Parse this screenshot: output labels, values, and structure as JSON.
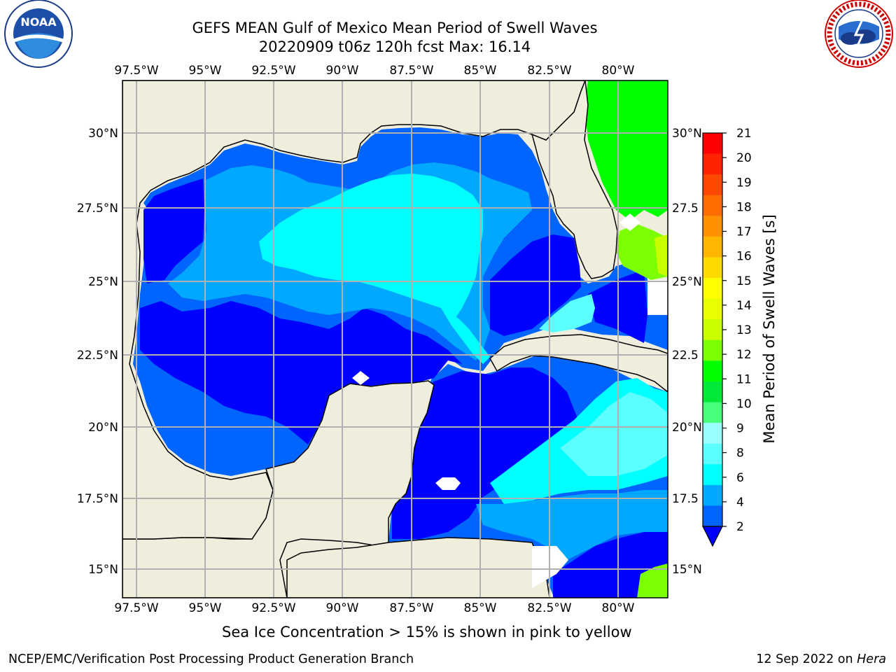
{
  "header": {
    "title_line1": "GEFS MEAN Gulf of Mexico Mean Period of Swell Waves",
    "title_line2": "20220909 t06z 120h fcst   Max: 16.14"
  },
  "logos": {
    "left": {
      "name": "noaa-logo",
      "text": "NOAA",
      "ring_text": "NATIONAL OCEANIC AND ATMOSPHERIC ADMINISTRATION · U.S. DEPARTMENT OF COMMERCE"
    },
    "right": {
      "name": "nws-logo",
      "ring_text": "NATIONAL WEATHER SERVICE"
    }
  },
  "map": {
    "lon_ticks": [
      "97.5°W",
      "95°W",
      "92.5°W",
      "90°W",
      "87.5°W",
      "85°W",
      "82.5°W",
      "80°W"
    ],
    "lat_ticks_left": [
      "30°N",
      "27.5°N",
      "25°N",
      "22.5°N",
      "20°N",
      "17.5°N",
      "15°N"
    ],
    "lat_ticks_right": [
      "30°N",
      "27.5",
      "25°N",
      "22.5",
      "20°N",
      "17.5",
      "15°N"
    ]
  },
  "colorbar": {
    "label": "Mean Period of Swell Waves [s]",
    "ticks": [
      "21",
      "20",
      "19",
      "18",
      "17",
      "16",
      "15",
      "14",
      "13",
      "12",
      "11",
      "10",
      "9",
      "8",
      "6",
      "4",
      "2"
    ],
    "colors": [
      "#ff0000",
      "#ff2400",
      "#ff4800",
      "#ff6d00",
      "#ff9100",
      "#ffb600",
      "#ffda00",
      "#ffff00",
      "#e8ff00",
      "#c8ff00",
      "#7cff00",
      "#00ff00",
      "#00e838",
      "#4aff7c",
      "#9cffff",
      "#5cffff",
      "#00ffff",
      "#00a8ff",
      "#0064ff"
    ],
    "extend_color": "#0000ff"
  },
  "caption": "Sea Ice Concentration > 15% is shown in pink to yellow",
  "footer": {
    "left": "NCEP/EMC/Verification Post Processing Product Generation Branch",
    "right_prefix": "12 Sep 2022 on ",
    "right_host": "Hera"
  }
}
